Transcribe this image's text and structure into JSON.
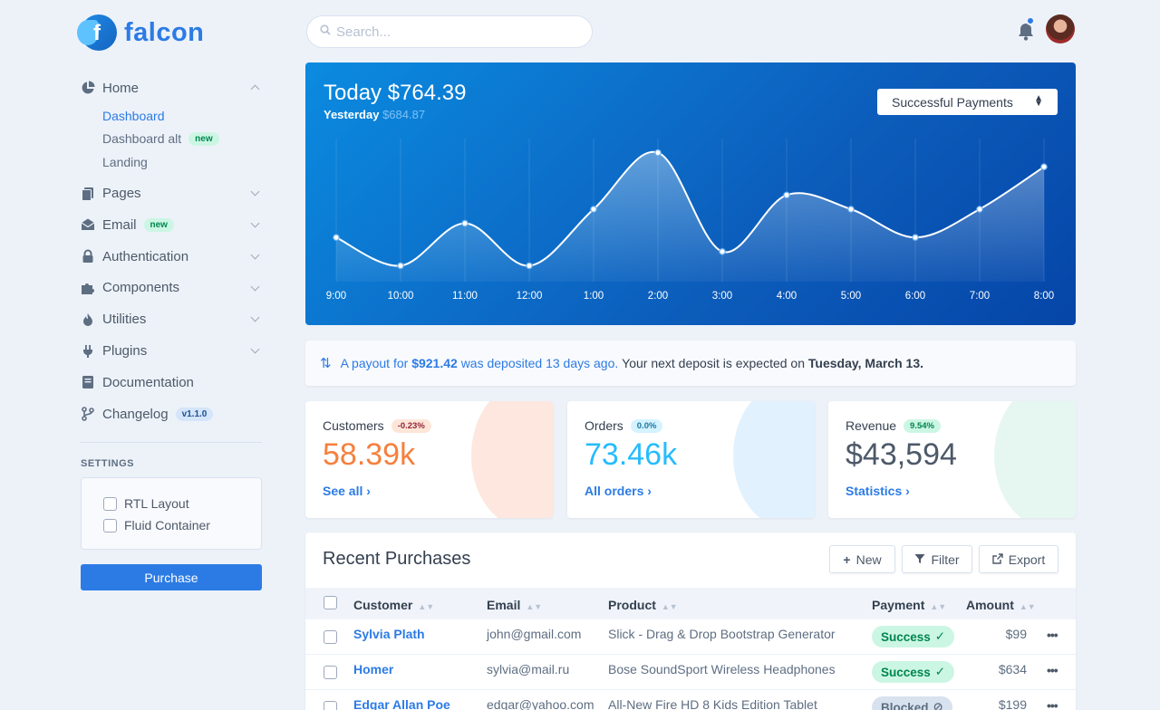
{
  "brand": {
    "name": "falcon",
    "logo_letter": "f"
  },
  "sidebar": {
    "home": {
      "label": "Home",
      "icon": "pie-chart-icon"
    },
    "home_sub": [
      {
        "label": "Dashboard",
        "active": true
      },
      {
        "label": "Dashboard alt",
        "badge": "new"
      },
      {
        "label": "Landing"
      }
    ],
    "items": [
      {
        "label": "Pages",
        "icon": "pages-icon"
      },
      {
        "label": "Email",
        "icon": "envelope-icon",
        "badge": "new"
      },
      {
        "label": "Authentication",
        "icon": "lock-icon"
      },
      {
        "label": "Components",
        "icon": "puzzle-icon"
      },
      {
        "label": "Utilities",
        "icon": "fire-icon"
      },
      {
        "label": "Plugins",
        "icon": "plug-icon"
      },
      {
        "label": "Documentation",
        "icon": "book-icon"
      },
      {
        "label": "Changelog",
        "icon": "code-branch-icon",
        "badge": "v1.1.0"
      }
    ],
    "settings_label": "SETTINGS",
    "settings": [
      {
        "label": "RTL Layout",
        "checked": false
      },
      {
        "label": "Fluid Container",
        "checked": false
      }
    ],
    "purchase_label": "Purchase"
  },
  "topbar": {
    "search_placeholder": "Search..."
  },
  "hero": {
    "today_label": "Today",
    "today_value": "$764.39",
    "yesterday_label": "Yesterday",
    "yesterday_value": "$684.87",
    "select_value": "Successful Payments"
  },
  "chart_data": {
    "type": "area",
    "categories": [
      "9:00",
      "10:00",
      "11:00",
      "12:00",
      "1:00",
      "2:00",
      "3:00",
      "4:00",
      "5:00",
      "6:00",
      "7:00",
      "8:00"
    ],
    "values": [
      60,
      40,
      70,
      40,
      80,
      120,
      50,
      90,
      80,
      60,
      80,
      110
    ],
    "ylim": [
      30,
      130
    ]
  },
  "payout": {
    "prefix": "A payout for",
    "amount": "$921.42",
    "middle": "was deposited 13 days ago.",
    "suffix": "Your next deposit is expected on",
    "date": "Tuesday, March 13."
  },
  "stats": [
    {
      "title": "Customers",
      "pill": "-0.23%",
      "value": "58.39k",
      "link": "See all",
      "pill_bg": "#fde6d8",
      "pill_fg": "#932338",
      "value_color": "#f5803e",
      "blob": "#f9b9a0"
    },
    {
      "title": "Orders",
      "pill": "0.0%",
      "value": "73.46k",
      "link": "All orders",
      "pill_bg": "#d4f2ff",
      "pill_fg": "#1978a2",
      "value_color": "#27bcfd",
      "blob": "#a8d8f8"
    },
    {
      "title": "Revenue",
      "pill": "9.54%",
      "value": "$43,594",
      "link": "Statistics",
      "pill_bg": "#ccf6e4",
      "pill_fg": "#00864e",
      "value_color": "#4d5969",
      "blob": "#b7e8d6"
    }
  ],
  "purchases": {
    "title": "Recent Purchases",
    "buttons": {
      "new": "New",
      "filter": "Filter",
      "export": "Export"
    },
    "columns": [
      "Customer",
      "Email",
      "Product",
      "Payment",
      "Amount"
    ],
    "rows": [
      {
        "customer": "Sylvia Plath",
        "email": "john@gmail.com",
        "product": "Slick - Drag & Drop Bootstrap Generator",
        "payment": "Success",
        "status": "success",
        "amount": "$99"
      },
      {
        "customer": "Homer",
        "email": "sylvia@mail.ru",
        "product": "Bose SoundSport Wireless Headphones",
        "payment": "Success",
        "status": "success",
        "amount": "$634"
      },
      {
        "customer": "Edgar Allan Poe",
        "email": "edgar@yahoo.com",
        "product": "All-New Fire HD 8 Kids Edition Tablet",
        "payment": "Blocked",
        "status": "blocked",
        "amount": "$199"
      }
    ]
  }
}
